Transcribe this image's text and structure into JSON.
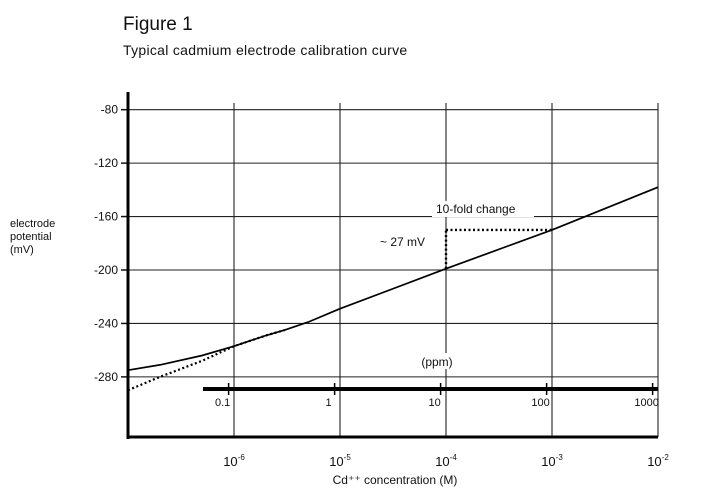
{
  "chart_data": {
    "type": "line",
    "title": "Figure 1",
    "subtitle": "Typical cadmium electrode calibration curve",
    "ylabel_lines": [
      "electrode",
      "potential",
      "(mV)"
    ],
    "xlabel": "Cd⁺⁺ concentration (M)",
    "y_ticks": [
      -80,
      -120,
      -160,
      -200,
      -240,
      -280
    ],
    "ylim": [
      -325,
      -75
    ],
    "x_scale": "log10",
    "xlim_log10": [
      -7.0,
      -2.0
    ],
    "x_ticks": [
      {
        "value": "1e-6",
        "base": "10",
        "exp": "-6"
      },
      {
        "value": "1e-5",
        "base": "10",
        "exp": "-5"
      },
      {
        "value": "1e-4",
        "base": "10",
        "exp": "-4"
      },
      {
        "value": "1e-3",
        "base": "10",
        "exp": "-3"
      },
      {
        "value": "1e-2",
        "base": "10",
        "exp": "-2"
      }
    ],
    "ppm_axis": {
      "label": "(ppm)",
      "ticks": [
        {
          "label": "0.1",
          "ppm": 0.1
        },
        {
          "label": "1",
          "ppm": 1
        },
        {
          "label": "10",
          "ppm": 10
        },
        {
          "label": "100",
          "ppm": 100
        },
        {
          "label": "1000",
          "ppm": 1000
        }
      ]
    },
    "grid": true,
    "series": [
      {
        "style": "solid",
        "x": [
          1e-07,
          2e-07,
          5e-07,
          1e-06,
          2e-06,
          3e-06,
          5e-06,
          1e-05,
          0.0001,
          0.001,
          0.01
        ],
        "y": [
          -275,
          -271,
          -264,
          -257,
          -249,
          -245,
          -239,
          -229,
          -199,
          -170,
          -138
        ]
      },
      {
        "style": "dotted",
        "x": [
          1e-07,
          2e-07,
          5e-07,
          1e-06,
          2e-06,
          3e-06
        ],
        "y": [
          -290,
          -280,
          -268,
          -257,
          -249,
          -245
        ]
      }
    ],
    "annotations": [
      {
        "id": "fold-change",
        "text": "10-fold change"
      },
      {
        "id": "mv-change",
        "text": "~ 27 mV"
      }
    ]
  }
}
